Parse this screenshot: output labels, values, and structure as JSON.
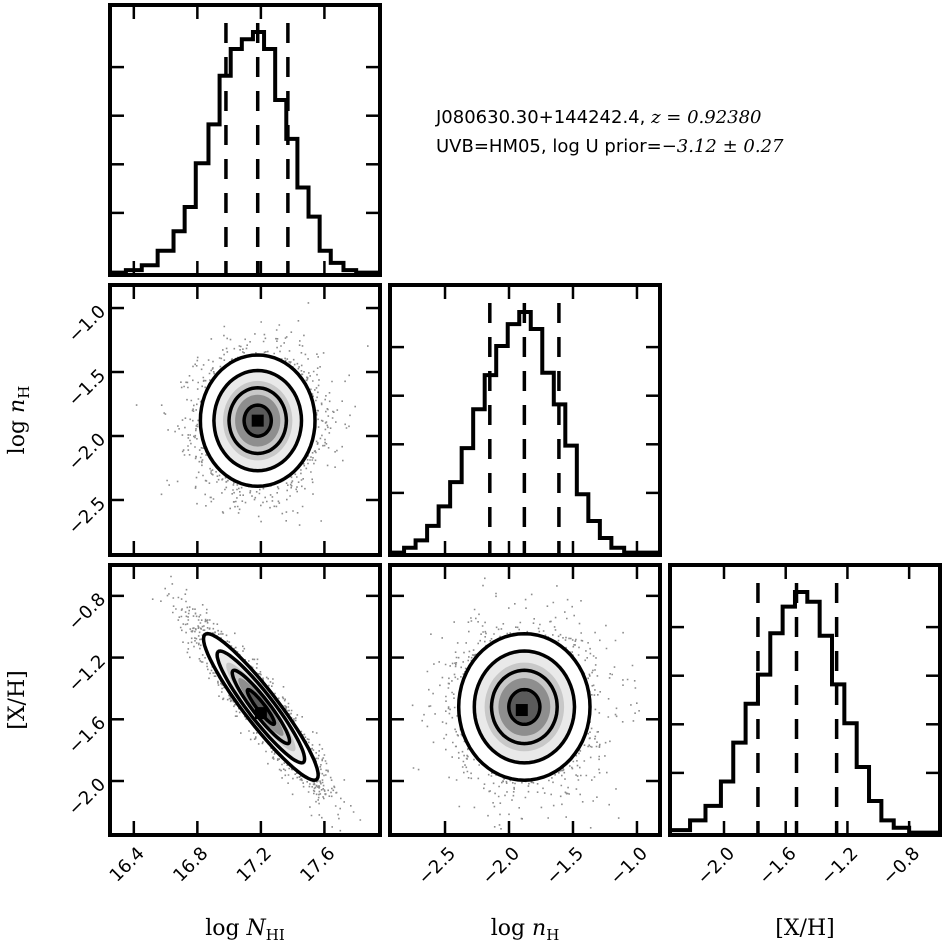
{
  "chart_data": {
    "type": "corner",
    "parameters": [
      {
        "key": "NHI",
        "label_main": "log ",
        "label_sym": "N",
        "label_sub": "HI",
        "range": [
          16.25,
          17.95
        ],
        "ticks": [
          "16.4",
          "16.8",
          "17.2",
          "17.6"
        ],
        "tick_values": [
          16.4,
          16.8,
          17.2,
          17.6
        ],
        "median": 17.18,
        "lo": 16.98,
        "hi": 17.37
      },
      {
        "key": "nH",
        "label_main": "log ",
        "label_sym": "n",
        "label_sub": "H",
        "range": [
          -2.93,
          -0.82
        ],
        "ticks": [
          "−2.5",
          "−2.0",
          "−1.5",
          "−1.0"
        ],
        "tick_values": [
          -2.5,
          -2.0,
          -1.5,
          -1.0
        ],
        "median": -1.88,
        "lo": -2.15,
        "hi": -1.61
      },
      {
        "key": "XH",
        "label_main": "[X/H]",
        "label_sym": "",
        "label_sub": "",
        "range": [
          -2.35,
          -0.6
        ],
        "ticks": [
          "−2.0",
          "−1.6",
          "−1.2",
          "−0.8"
        ],
        "tick_values": [
          -2.0,
          -1.6,
          -1.2,
          -0.8
        ],
        "median": -1.53,
        "lo": -1.78,
        "hi": -1.27
      }
    ],
    "ylabels": {
      "nH": {
        "ticks": [
          "−1.0",
          "−1.5",
          "−2.0",
          "−2.5"
        ],
        "tick_values": [
          -1.0,
          -1.5,
          -2.0,
          -2.5
        ]
      },
      "XH": {
        "ticks": [
          "−0.8",
          "−1.2",
          "−1.6",
          "−2.0"
        ],
        "tick_values": [
          -0.8,
          -1.2,
          -1.6,
          -2.0
        ]
      }
    },
    "histograms": {
      "NHI": {
        "edges": [
          16.25,
          16.35,
          16.45,
          16.55,
          16.65,
          16.72,
          16.79,
          16.87,
          16.94,
          17.01,
          17.08,
          17.15,
          17.22,
          17.29,
          17.36,
          17.43,
          17.5,
          17.57,
          17.64,
          17.72,
          17.8,
          17.95
        ],
        "counts": [
          0.01,
          0.02,
          0.04,
          0.1,
          0.18,
          0.28,
          0.46,
          0.62,
          0.82,
          0.93,
          0.97,
          1.0,
          0.93,
          0.72,
          0.56,
          0.36,
          0.24,
          0.1,
          0.05,
          0.02,
          0.01
        ]
      },
      "nH": {
        "edges": [
          -2.93,
          -2.82,
          -2.73,
          -2.64,
          -2.55,
          -2.46,
          -2.37,
          -2.28,
          -2.19,
          -2.1,
          -2.01,
          -1.92,
          -1.83,
          -1.74,
          -1.65,
          -1.56,
          -1.47,
          -1.38,
          -1.29,
          -1.2,
          -1.1,
          -0.82
        ],
        "counts": [
          0.01,
          0.03,
          0.06,
          0.12,
          0.2,
          0.3,
          0.44,
          0.6,
          0.74,
          0.86,
          0.95,
          1.0,
          0.93,
          0.75,
          0.62,
          0.45,
          0.25,
          0.14,
          0.07,
          0.03,
          0.01
        ]
      },
      "XH": {
        "edges": [
          -2.35,
          -2.22,
          -2.12,
          -2.02,
          -1.94,
          -1.86,
          -1.78,
          -1.7,
          -1.62,
          -1.54,
          -1.46,
          -1.38,
          -1.3,
          -1.22,
          -1.14,
          -1.06,
          -0.98,
          -0.9,
          -0.8,
          -0.6
        ],
        "counts": [
          0.02,
          0.06,
          0.12,
          0.22,
          0.38,
          0.54,
          0.66,
          0.83,
          0.94,
          1.0,
          0.96,
          0.82,
          0.62,
          0.46,
          0.28,
          0.14,
          0.06,
          0.03,
          0.01
        ]
      }
    },
    "pairs": [
      {
        "x": "NHI",
        "y": "nH",
        "mean": [
          17.18,
          -1.88
        ],
        "sd": [
          0.19,
          0.27
        ],
        "rho": 0.0,
        "peak": [
          17.18,
          -1.88
        ]
      },
      {
        "x": "NHI",
        "y": "XH",
        "mean": [
          17.2,
          -1.52
        ],
        "sd": [
          0.19,
          0.25
        ],
        "rho": -0.93,
        "peak": [
          17.2,
          -1.56
        ]
      },
      {
        "x": "nH",
        "y": "XH",
        "mean": [
          -1.88,
          -1.52
        ],
        "sd": [
          0.27,
          0.25
        ],
        "rho": 0.0,
        "peak": [
          -1.9,
          -1.54
        ]
      }
    ],
    "grid": false,
    "legend": "none"
  },
  "annotation": {
    "line1_text": "J080630.30+144242.4, ",
    "line1_math": "z = 0.92380",
    "line2_text": "UVB=HM05, log U prior=",
    "line2_math": "−3.12 ± 0.27"
  }
}
